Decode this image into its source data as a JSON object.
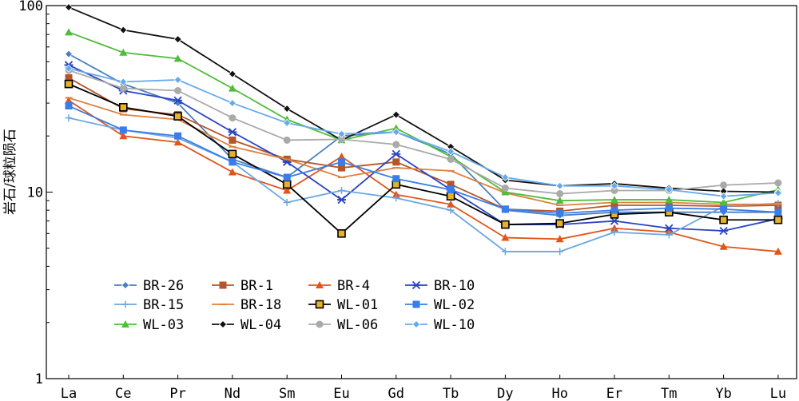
{
  "chart_data": {
    "type": "line",
    "y_scale": "log",
    "ylim": [
      1,
      100
    ],
    "ylabel": "岩石/球粒陨石",
    "y_ticks": [
      "1",
      "10",
      "100"
    ],
    "categories": [
      "La",
      "Ce",
      "Pr",
      "Nd",
      "Sm",
      "Eu",
      "Gd",
      "Tb",
      "Dy",
      "Ho",
      "Er",
      "Tm",
      "Yb",
      "Lu"
    ],
    "legend_position": "center-left",
    "series": [
      {
        "name": "BR-26",
        "color": "#4a7fc1",
        "marker": "diamond",
        "values": [
          55,
          38,
          30,
          15,
          12,
          20,
          21,
          16,
          8.0,
          7.5,
          7.8,
          7.8,
          7.8,
          7.8
        ]
      },
      {
        "name": "BR-1",
        "color": "#b5552a",
        "marker": "square",
        "values": [
          41,
          28,
          26,
          19,
          15,
          13.5,
          14.5,
          11,
          8.1,
          7.9,
          8.5,
          8.5,
          8.4,
          8.5
        ]
      },
      {
        "name": "BR-4",
        "color": "#e0561a",
        "marker": "triangle",
        "values": [
          31,
          20,
          18.5,
          12.8,
          10.2,
          15.5,
          9.7,
          8.6,
          5.7,
          5.6,
          6.4,
          6.1,
          5.1,
          4.8
        ]
      },
      {
        "name": "BR-10",
        "color": "#2a44c2",
        "marker": "x",
        "values": [
          48,
          35,
          31,
          21,
          14.5,
          9.1,
          16,
          10.3,
          6.7,
          6.7,
          7.0,
          6.4,
          6.2,
          7.2
        ]
      },
      {
        "name": "BR-15",
        "color": "#6ba7e0",
        "marker": "plus",
        "values": [
          25,
          21.5,
          19.5,
          14.5,
          8.8,
          10.2,
          9.3,
          8.0,
          4.8,
          4.8,
          6.1,
          5.9,
          8.4,
          8.7
        ]
      },
      {
        "name": "BR-18",
        "color": "#e08040",
        "marker": "dash",
        "values": [
          32,
          26,
          24.5,
          17.5,
          15,
          12,
          13.5,
          13,
          9.9,
          8.5,
          8.8,
          8.8,
          8.6,
          8.6
        ]
      },
      {
        "name": "WL-01",
        "color": "#000000",
        "marker": "square-yellow",
        "values": [
          38,
          28.5,
          25.5,
          16,
          11,
          6.0,
          11,
          9.5,
          6.7,
          6.8,
          7.6,
          7.8,
          7.1,
          7.1
        ]
      },
      {
        "name": "WL-02",
        "color": "#3a7de8",
        "marker": "square",
        "values": [
          29,
          21.5,
          20,
          14.5,
          12,
          14.5,
          11.8,
          10.3,
          8.1,
          7.7,
          8.0,
          8.2,
          8.1,
          7.8
        ]
      },
      {
        "name": "WL-03",
        "color": "#4fbd3a",
        "marker": "triangle",
        "values": [
          72,
          56,
          52,
          36,
          24.5,
          19,
          22,
          15.5,
          10,
          9.0,
          9.1,
          9.1,
          8.8,
          10.3
        ]
      },
      {
        "name": "WL-04",
        "color": "#111111",
        "marker": "diamond",
        "values": [
          98,
          74,
          66,
          43,
          28,
          19,
          26,
          17.5,
          11.6,
          10.8,
          11.1,
          10.5,
          10.1,
          10.0
        ]
      },
      {
        "name": "WL-06",
        "color": "#aaaaaa",
        "marker": "circle",
        "values": [
          45,
          36,
          35,
          25,
          19,
          19.2,
          18,
          15,
          10.5,
          9.8,
          10.2,
          10.2,
          10.9,
          11.2
        ]
      },
      {
        "name": "WL-10",
        "color": "#66aaee",
        "marker": "diamond",
        "values": [
          46,
          39,
          40,
          30,
          23.5,
          20.5,
          21,
          16.5,
          12,
          10.8,
          10.8,
          10.3,
          9.5,
          9.9
        ]
      }
    ]
  }
}
